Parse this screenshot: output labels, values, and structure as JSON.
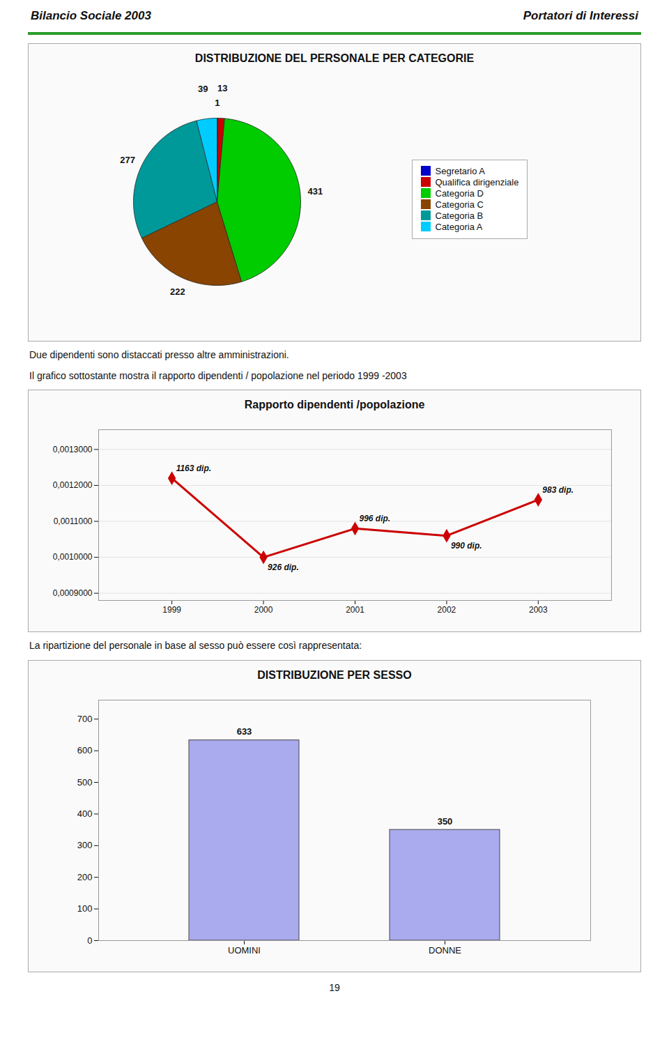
{
  "chart_data": [
    {
      "type": "pie",
      "title": "DISTRIBUZIONE DEL PERSONALE PER CATEGORIE",
      "annotations": [
        "Bilancio Sociale 2003",
        "Portatori di Interessi"
      ],
      "categories": [
        "Segretario A",
        "Qualifica dirigenziale",
        "Categoria D",
        "Categoria C",
        "Categoria B",
        "Categoria A"
      ],
      "values": [
        1,
        13,
        431,
        222,
        277,
        39
      ],
      "colors": [
        "#0000cc",
        "#cc0000",
        "#00cc00",
        "#884400",
        "#009999",
        "#00ccff"
      ],
      "data_labels": true,
      "legend": "right"
    },
    {
      "type": "line",
      "title": "Rapporto dipendenti /popolazione",
      "annotations": [
        "Due dipendenti sono distaccati presso altre amministrazioni.",
        "Il grafico sottostante mostra il rapporto dipendenti / popolazione nel periodo 1999 -2003",
        {
          "x": 1999,
          "y": 0.00122,
          "text": "1163 dip."
        },
        {
          "x": 2000,
          "y": 0.001,
          "text": "926 dip."
        },
        {
          "x": 2001,
          "y": 0.00108,
          "text": "996 dip."
        },
        {
          "x": 2002,
          "y": 0.00106,
          "text": "990 dip."
        },
        {
          "x": 2003,
          "y": 0.00116,
          "text": "983 dip."
        }
      ],
      "x": [
        1999,
        2000,
        2001,
        2002,
        2003
      ],
      "values": [
        0.00122,
        0.001,
        0.00108,
        0.00106,
        0.00116
      ],
      "color": "#cc0000",
      "marker": "diamond",
      "xlim": [
        1998.2,
        2003.8
      ],
      "xticks": [
        1999,
        2000,
        2001,
        2002,
        2003
      ],
      "ylim": [
        0.00088,
        0.001355
      ],
      "yticks": [
        {
          "value": 0.0009,
          "label": "0,0009000"
        },
        {
          "value": 0.001,
          "label": "0,0010000"
        },
        {
          "value": 0.0011,
          "label": "0,0011000"
        },
        {
          "value": 0.0012,
          "label": "0,0012000"
        },
        {
          "value": 0.0013,
          "label": "0,0013000"
        }
      ],
      "grid": true
    },
    {
      "type": "bar",
      "title": "DISTRIBUZIONE PER SESSO",
      "annotations": [
        "La ripartizione del personale in base al sesso può essere così rappresentata:",
        "19"
      ],
      "categories": [
        "UOMINI",
        "DONNE"
      ],
      "values": [
        633,
        350
      ],
      "color": "#aaaaee",
      "ylim": [
        0,
        760
      ],
      "yticks": [
        0,
        100,
        200,
        300,
        400,
        500,
        600,
        700
      ],
      "data_labels": true
    }
  ]
}
